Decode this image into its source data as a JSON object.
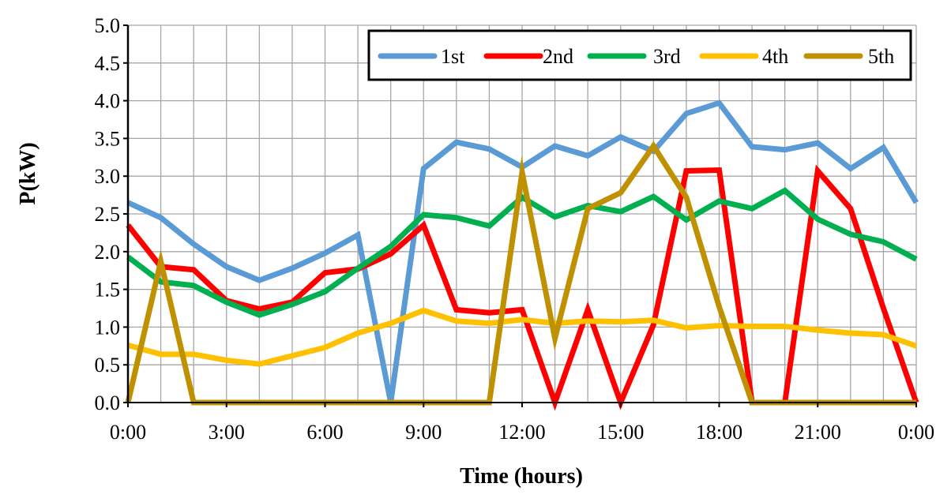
{
  "chart_data": {
    "type": "line",
    "title": "",
    "xlabel": "Time (hours)",
    "ylabel": "P(kW)",
    "ylim": [
      0,
      5
    ],
    "xlim": [
      0,
      24
    ],
    "grid": true,
    "legend_position": "top-right",
    "x_hours": [
      0,
      1,
      2,
      3,
      4,
      5,
      6,
      7,
      8,
      9,
      10,
      11,
      12,
      13,
      14,
      15,
      16,
      17,
      18,
      19,
      20,
      21,
      22,
      23,
      24
    ],
    "x_tick_labels": [
      "0:00",
      "3:00",
      "6:00",
      "9:00",
      "12:00",
      "15:00",
      "18:00",
      "21:00",
      "0:00"
    ],
    "x_tick_hours": [
      0,
      3,
      6,
      9,
      12,
      15,
      18,
      21,
      24
    ],
    "y_tick_labels": [
      "0.0",
      "0.5",
      "1.0",
      "1.5",
      "2.0",
      "2.5",
      "3.0",
      "3.5",
      "4.0",
      "4.5",
      "5.0"
    ],
    "series": [
      {
        "name": "1st",
        "color": "#5B9BD5",
        "values": [
          2.65,
          2.45,
          2.1,
          1.8,
          1.62,
          1.78,
          1.98,
          2.22,
          0.0,
          3.1,
          3.45,
          3.36,
          3.12,
          3.4,
          3.27,
          3.52,
          3.33,
          3.83,
          3.97,
          3.39,
          3.35,
          3.44,
          3.1,
          3.38,
          2.65
        ]
      },
      {
        "name": "2nd",
        "color": "#FF0000",
        "values": [
          2.35,
          1.8,
          1.76,
          1.35,
          1.24,
          1.33,
          1.72,
          1.77,
          1.97,
          2.35,
          1.23,
          1.19,
          1.23,
          0.0,
          1.23,
          0.0,
          1.03,
          3.07,
          3.08,
          0.0,
          0.0,
          3.07,
          2.57,
          1.25,
          0.0
        ]
      },
      {
        "name": "3rd",
        "color": "#00B050",
        "values": [
          1.93,
          1.6,
          1.55,
          1.33,
          1.16,
          1.3,
          1.47,
          1.78,
          2.07,
          2.49,
          2.45,
          2.34,
          2.72,
          2.46,
          2.61,
          2.53,
          2.73,
          2.42,
          2.67,
          2.57,
          2.81,
          2.43,
          2.23,
          2.13,
          1.9
        ]
      },
      {
        "name": "4th",
        "color": "#FFC000",
        "values": [
          0.76,
          0.64,
          0.64,
          0.56,
          0.51,
          0.62,
          0.73,
          0.92,
          1.05,
          1.22,
          1.08,
          1.05,
          1.1,
          1.05,
          1.08,
          1.07,
          1.09,
          0.99,
          1.02,
          1.01,
          1.01,
          0.96,
          0.92,
          0.9,
          0.75
        ]
      },
      {
        "name": "5th",
        "color": "#BF9000",
        "values": [
          0.0,
          1.87,
          0.0,
          0.0,
          0.0,
          0.0,
          0.0,
          0.0,
          0.0,
          0.0,
          0.0,
          0.0,
          3.05,
          0.85,
          2.57,
          2.78,
          3.4,
          2.72,
          1.27,
          0.0,
          0.0,
          0.0,
          0.0,
          0.0,
          0.0
        ]
      }
    ]
  }
}
